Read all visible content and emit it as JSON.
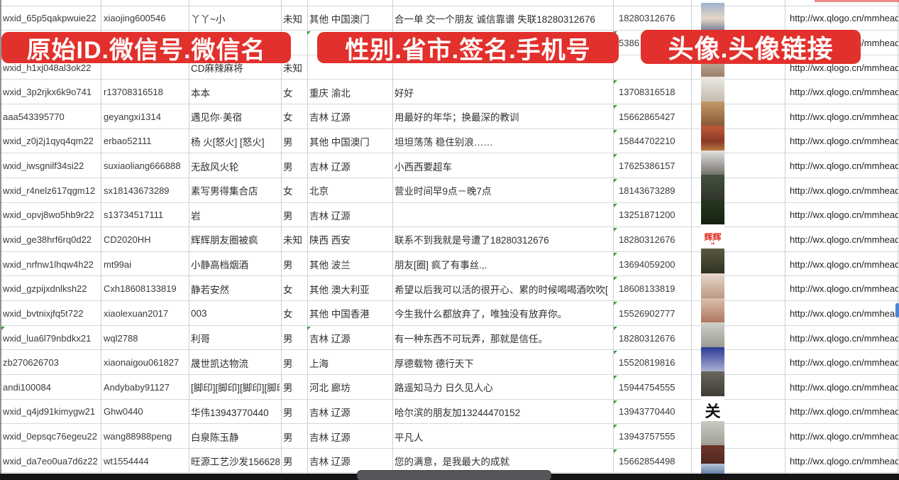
{
  "colors": {
    "banner_red": "#e2302c",
    "triangle_green": "#3d9a3d",
    "gridline": "#d4d7da",
    "link_text": "#222222"
  },
  "banners": {
    "items": [
      {
        "text": "原始ID.微信号.微信名"
      },
      {
        "text": "性别.省市.签名.手机号"
      },
      {
        "text": "头像.头像链接"
      }
    ]
  },
  "table": {
    "rows": [
      {
        "wxid": "wxid_65p5qakpwuie22",
        "weixin_id": "xiaojing600546",
        "name": "丫丫~小",
        "gender": "未知",
        "region": "其他 中国澳门",
        "signature": "合一单 交一个朋友 诚信靠谱 失联18280312676",
        "phone": "18280312676",
        "link": "http://wx.qlogo.cn/mmhead",
        "marks": [],
        "avatar": {
          "colors": [
            "#9fb3cc",
            "#e6d6c8",
            "#56688c"
          ]
        }
      },
      {
        "wxid": "",
        "weixin_id": "",
        "name": "",
        "gender": "",
        "region": "",
        "signature": "",
        "phone": "5386",
        "link": "http://wx.qlogo.cn/mmhead",
        "marks": [
          "region",
          "phone"
        ],
        "avatar": null
      },
      {
        "wxid": "wxid_h1xj048al3ok22",
        "weixin_id": "",
        "name": "CD麻辣麻将",
        "gender": "未知",
        "region": "",
        "signature": "",
        "phone": "",
        "link": "http://wx.qlogo.cn/mmhead",
        "marks": [
          "phone"
        ],
        "avatar": {
          "colors": [
            "#d8c4b2",
            "#8a6d5a"
          ]
        }
      },
      {
        "wxid": "wxid_3p2rjkx6k9o741",
        "weixin_id": "r13708316518",
        "name": "本本",
        "gender": "女",
        "region": "重庆 渝北",
        "signature": "好好",
        "phone": "13708316518",
        "link": "http://wx.qlogo.cn/mmhead",
        "marks": [
          "phone"
        ],
        "avatar": {
          "colors": [
            "#ece8e2",
            "#b9b0a2"
          ]
        }
      },
      {
        "wxid": "aaa543395770",
        "weixin_id": "geyangxi1314",
        "name": "遇见你·美宿",
        "gender": "女",
        "region": "吉林 辽源",
        "signature": "用最好的年华；换最深的教训",
        "phone": "15662865427",
        "link": "http://wx.qlogo.cn/mmhead",
        "marks": [
          "phone"
        ],
        "avatar": {
          "colors": [
            "#c49a68",
            "#77462a"
          ]
        }
      },
      {
        "wxid": "wxid_z0j2j1qyq4qm22",
        "weixin_id": "erbao52111",
        "name": "杨 火[怒火] [怒火]",
        "gender": "男",
        "region": "其他 中国澳门",
        "signature": "坦坦荡荡 稳住别浪……",
        "phone": "15844702210",
        "link": "http://wx.qlogo.cn/mmhead",
        "marks": [
          "phone"
        ],
        "avatar": {
          "colors": [
            "#c05a38",
            "#8a3a26",
            "#d9a24e"
          ]
        }
      },
      {
        "wxid": "wxid_iwsgnilf34si22",
        "weixin_id": "suxiaoliang666888",
        "name": "无敌风火轮",
        "gender": "男",
        "region": "吉林 辽源",
        "signature": "小西西要超车",
        "phone": "17625386157",
        "link": "http://wx.qlogo.cn/mmhead",
        "marks": [
          "phone"
        ],
        "avatar": {
          "colors": [
            "#e2e2de",
            "#55514a"
          ]
        }
      },
      {
        "wxid": "wxid_r4nelz617qgm12",
        "weixin_id": "sx18143673289",
        "name": "素写男得集合店",
        "gender": "女",
        "region": "北京",
        "signature": "营业时间早9点－晚7点",
        "phone": "18143673289",
        "link": "http://wx.qlogo.cn/mmhead",
        "marks": [
          "phone"
        ],
        "avatar": {
          "colors": [
            "#44503e",
            "#2a3026"
          ]
        }
      },
      {
        "wxid": "wxid_opvj8wo5hb9r22",
        "weixin_id": "s13734517111",
        "name": "岩",
        "gender": "男",
        "region": "吉林 辽源",
        "signature": "",
        "phone": "13251871200",
        "link": "http://wx.qlogo.cn/mmhead",
        "marks": [
          "phone"
        ],
        "avatar": {
          "colors": [
            "#28381f",
            "#101c0e"
          ]
        }
      },
      {
        "wxid": "wxid_ge38hrf6rq0d22",
        "weixin_id": "CD2020HH",
        "name": "辉辉朋友圈被疯",
        "gender": "未知",
        "region": "陕西 西安",
        "signature": "联系不到我就是号遭了18280312676",
        "phone": "18280312676",
        "link": "http://wx.qlogo.cn/mmhead",
        "marks": [
          "phone"
        ],
        "avatar": {
          "colors": [
            "#ffffff",
            "#ffffff"
          ],
          "text": "辉辉",
          "text_color": "#e03024",
          "sub": "I♥",
          "sub_color": "#e03024"
        }
      },
      {
        "wxid": "wxid_nrfnw1lhqw4h22",
        "weixin_id": "mt99ai",
        "name": "小静高档烟酒",
        "gender": "男",
        "region": "其他 波兰",
        "signature": "朋友[圈] 疯了有事丝.,.",
        "phone": "13694059200",
        "link": "http://wx.qlogo.cn/mmhead",
        "marks": [
          "phone"
        ],
        "avatar": {
          "colors": [
            "#5a5a40",
            "#26261c"
          ]
        }
      },
      {
        "wxid": "wxid_gzpijxdnlksh22",
        "weixin_id": "Cxh18608133819",
        "name": "静若安然",
        "gender": "女",
        "region": "其他 澳大利亚",
        "signature": "希望以后我可以活的很开心、累的时候喝喝酒吹吹[",
        "phone": "18608133819",
        "link": "http://wx.qlogo.cn/mmhead",
        "marks": [
          "phone"
        ],
        "avatar": {
          "colors": [
            "#e8d8cc",
            "#b08a6e"
          ]
        }
      },
      {
        "wxid": "wxid_bvtnixjfq5t722",
        "weixin_id": "xiaolexuan2017",
        "name": "003",
        "gender": "女",
        "region": "其他 中国香港",
        "signature": "今生我什么都放弃了，唯独没有放弃你。",
        "phone": "15526902777",
        "link": "http://wx.qlogo.cn/mmhead",
        "marks": [
          "phone"
        ],
        "avatar": {
          "colors": [
            "#dcc0ae",
            "#a06048"
          ]
        }
      },
      {
        "wxid": "wxid_lua6l79nbdkx21",
        "weixin_id": "wql2788",
        "name": "利哥",
        "gender": "男",
        "region": "吉林 辽源",
        "signature": "有一种东西不可玩弄，那就是信任。",
        "phone": "18280312676",
        "link": "http://wx.qlogo.cn/mmhead",
        "marks": [
          "wxid",
          "region",
          "phone"
        ],
        "avatar": {
          "colors": [
            "#d0d0ca",
            "#8e8e86"
          ]
        }
      },
      {
        "wxid": "zb270626703",
        "weixin_id": "xiaonaigou061827",
        "name": "晟世凯达物流",
        "gender": "男",
        "region": "上海",
        "signature": "厚德载物 德行天下",
        "phone": "15520819816",
        "link": "http://wx.qlogo.cn/mmhead",
        "marks": [
          "phone"
        ],
        "avatar": {
          "colors": [
            "#2c3a96",
            "#cfd3e2"
          ]
        }
      },
      {
        "wxid": "andi100084",
        "weixin_id": "Andybaby91127",
        "name": "[脚印][脚印][脚印][脚印",
        "gender": "男",
        "region": "河北 廊坊",
        "signature": "路遥知马力 日久见人心",
        "phone": "15944754555",
        "link": "http://wx.qlogo.cn/mmhead",
        "marks": [
          "phone"
        ],
        "avatar": {
          "colors": [
            "#6a665c",
            "#33312c"
          ]
        }
      },
      {
        "wxid": "wxid_q4jd91kimygw21",
        "weixin_id": "Ghw0440",
        "name": "华伟13943770440",
        "gender": "男",
        "region": "吉林 辽源",
        "signature": "哈尔滨的朋友加13244470152",
        "phone": "13943770440",
        "link": "http://wx.qlogo.cn/mmhead",
        "marks": [
          "phone"
        ],
        "avatar": {
          "colors": [
            "#ffffff",
            "#ffffff"
          ],
          "text": "关",
          "text_color": "#111111"
        }
      },
      {
        "wxid": "wxid_0epsqc76egeu22",
        "weixin_id": "wang88988peng",
        "name": "白泉陈玉静",
        "gender": "男",
        "region": "吉林 辽源",
        "signature": "平凡人",
        "phone": "13943757555",
        "link": "http://wx.qlogo.cn/mmhead",
        "marks": [
          "phone"
        ],
        "avatar": {
          "colors": [
            "#cacac4",
            "#94948c"
          ]
        }
      },
      {
        "wxid": "wxid_da7eo0ua7d6z22",
        "weixin_id": "wt1554444",
        "name": "旺源工艺沙发15662854",
        "gender": "男",
        "region": "吉林 辽源",
        "signature": "您的满意，是我最大的成就",
        "phone": "15662854498",
        "link": "http://wx.qlogo.cn/mmhead",
        "marks": [
          "phone"
        ],
        "avatar": {
          "colors": [
            "#6e352c",
            "#3c1f1a"
          ],
          "strip_color": "#c03028"
        }
      }
    ],
    "partial_row": {
      "avatar": {
        "colors": [
          "#b5c6da",
          "#5d7aa0"
        ]
      },
      "marks": [
        "phone"
      ]
    }
  }
}
